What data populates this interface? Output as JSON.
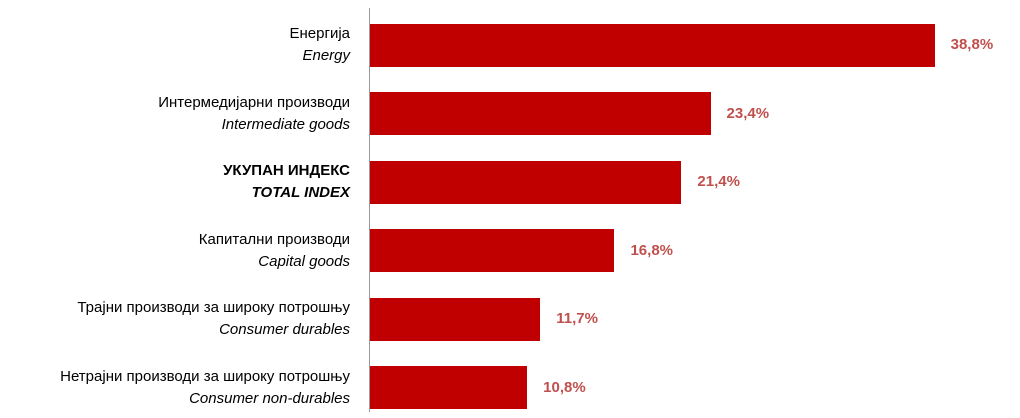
{
  "colors": {
    "bar": "#C00000",
    "value_label": "#C0504D"
  },
  "chart_data": {
    "type": "bar",
    "orientation": "horizontal",
    "categories": [
      {
        "sr": "Енергија",
        "en": "Energy",
        "bold": false
      },
      {
        "sr": "Интермедијарни производи",
        "en": "Intermediate goods",
        "bold": false
      },
      {
        "sr": "УКУПАН ИНДЕКС",
        "en": "TOTAL INDEX",
        "bold": true
      },
      {
        "sr": "Капитални производи",
        "en": "Capital goods",
        "bold": false
      },
      {
        "sr": "Трајни производи за широку потрошњу",
        "en": "Consumer durables",
        "bold": false
      },
      {
        "sr": "Нетрајни производи за широку потрошњу",
        "en": "Consumer non-durables",
        "bold": false
      }
    ],
    "values": [
      38.8,
      23.4,
      21.4,
      16.8,
      11.7,
      10.8
    ],
    "value_labels": [
      "38,8%",
      "23,4%",
      "21,4%",
      "16,8%",
      "11,7%",
      "10,8%"
    ],
    "unit": "%",
    "xlim": [
      0,
      40.2
    ],
    "grid": false,
    "legend": "none"
  }
}
